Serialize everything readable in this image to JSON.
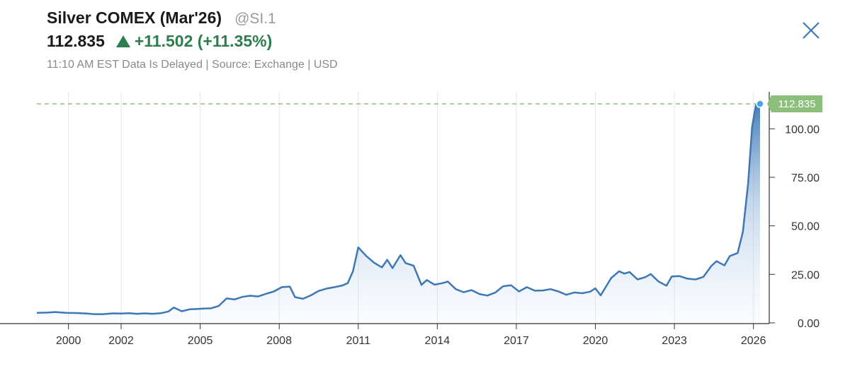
{
  "header": {
    "title": "Silver COMEX (Mar'26)",
    "symbol": "@SI.1",
    "last_price": "112.835",
    "change_text": "+11.502 (+11.35%)",
    "meta": "11:10 AM EST Data Is Delayed | Source: Exchange | USD",
    "close_icon": "close-icon",
    "up_icon": "triangle-up-icon"
  },
  "colors": {
    "line": "#3d78b5",
    "up": "#2e7d4f",
    "flag": "#8dbf7c",
    "grid": "#e6e6e6"
  },
  "chart_data": {
    "type": "area",
    "title": "",
    "xlabel": "",
    "ylabel": "",
    "xlim": [
      1998.8,
      2026.6
    ],
    "ylim": [
      0,
      112.835
    ],
    "grid": "vertical gridlines",
    "x_ticks": [
      2000,
      2002,
      2005,
      2008,
      2011,
      2014,
      2017,
      2020,
      2023,
      2026
    ],
    "x_tick_labels": [
      "2000",
      "2002",
      "2005",
      "2008",
      "2011",
      "2014",
      "2017",
      "2020",
      "2023",
      "2026"
    ],
    "y_ticks": [
      0,
      25,
      50,
      75,
      100
    ],
    "y_tick_labels": [
      "0.00",
      "25.00",
      "50.00",
      "75.00",
      "100.00"
    ],
    "last_value_label": "112.835",
    "series": [
      {
        "x": [
          1998.8,
          1999.2,
          1999.5,
          1999.9,
          2000.3,
          2000.7,
          2001.0,
          2001.3,
          2001.7,
          2002.0,
          2002.3,
          2002.6,
          2002.9,
          2003.2,
          2003.5,
          2003.8,
          2004.0,
          2004.3,
          2004.6,
          2004.9,
          2005.1,
          2005.4,
          2005.7,
          2006.0,
          2006.3,
          2006.6,
          2006.9,
          2007.2,
          2007.5,
          2007.8,
          2008.1,
          2008.4,
          2008.6,
          2008.9,
          2009.2,
          2009.5,
          2009.8,
          2010.1,
          2010.4,
          2010.6,
          2010.8,
          2011.0,
          2011.3,
          2011.6,
          2011.9,
          2012.1,
          2012.3,
          2012.6,
          2012.8,
          2013.1,
          2013.4,
          2013.6,
          2013.9,
          2014.2,
          2014.4,
          2014.7,
          2015.0,
          2015.3,
          2015.6,
          2015.9,
          2016.2,
          2016.5,
          2016.8,
          2017.1,
          2017.4,
          2017.7,
          2018.0,
          2018.3,
          2018.6,
          2018.9,
          2019.2,
          2019.5,
          2019.8,
          2020.0,
          2020.2,
          2020.4,
          2020.6,
          2020.9,
          2021.1,
          2021.3,
          2021.6,
          2021.9,
          2022.1,
          2022.4,
          2022.7,
          2022.9,
          2023.2,
          2023.5,
          2023.8,
          2024.1,
          2024.4,
          2024.6,
          2024.9,
          2025.1,
          2025.4,
          2025.6,
          2025.8,
          2025.95,
          2026.1,
          2026.25
        ],
        "values": [
          5.2,
          5.3,
          5.6,
          5.2,
          5.1,
          4.8,
          4.5,
          4.5,
          4.9,
          4.8,
          5.0,
          4.7,
          4.9,
          4.7,
          5.0,
          5.9,
          7.9,
          6.0,
          7.0,
          7.2,
          7.4,
          7.5,
          8.7,
          12.6,
          12.1,
          13.4,
          14.0,
          13.6,
          15.0,
          16.2,
          18.4,
          18.7,
          13.3,
          12.4,
          14.2,
          16.5,
          17.7,
          18.4,
          19.3,
          20.5,
          26.6,
          38.9,
          34.5,
          31.0,
          28.6,
          32.5,
          28.2,
          34.9,
          30.8,
          29.5,
          19.6,
          22.1,
          19.7,
          20.5,
          21.3,
          17.4,
          15.8,
          16.9,
          14.9,
          14.1,
          15.6,
          18.9,
          19.4,
          16.2,
          18.4,
          16.6,
          16.7,
          17.4,
          16.2,
          14.5,
          15.7,
          15.3,
          16.1,
          17.8,
          14.2,
          18.6,
          23.1,
          26.6,
          25.4,
          26.2,
          22.4,
          23.6,
          25.2,
          21.3,
          19.2,
          23.9,
          24.1,
          22.8,
          22.4,
          23.7,
          29.3,
          31.8,
          29.6,
          34.4,
          36.0,
          47.0,
          72.0,
          101.0,
          112.835,
          112.835
        ]
      }
    ]
  }
}
